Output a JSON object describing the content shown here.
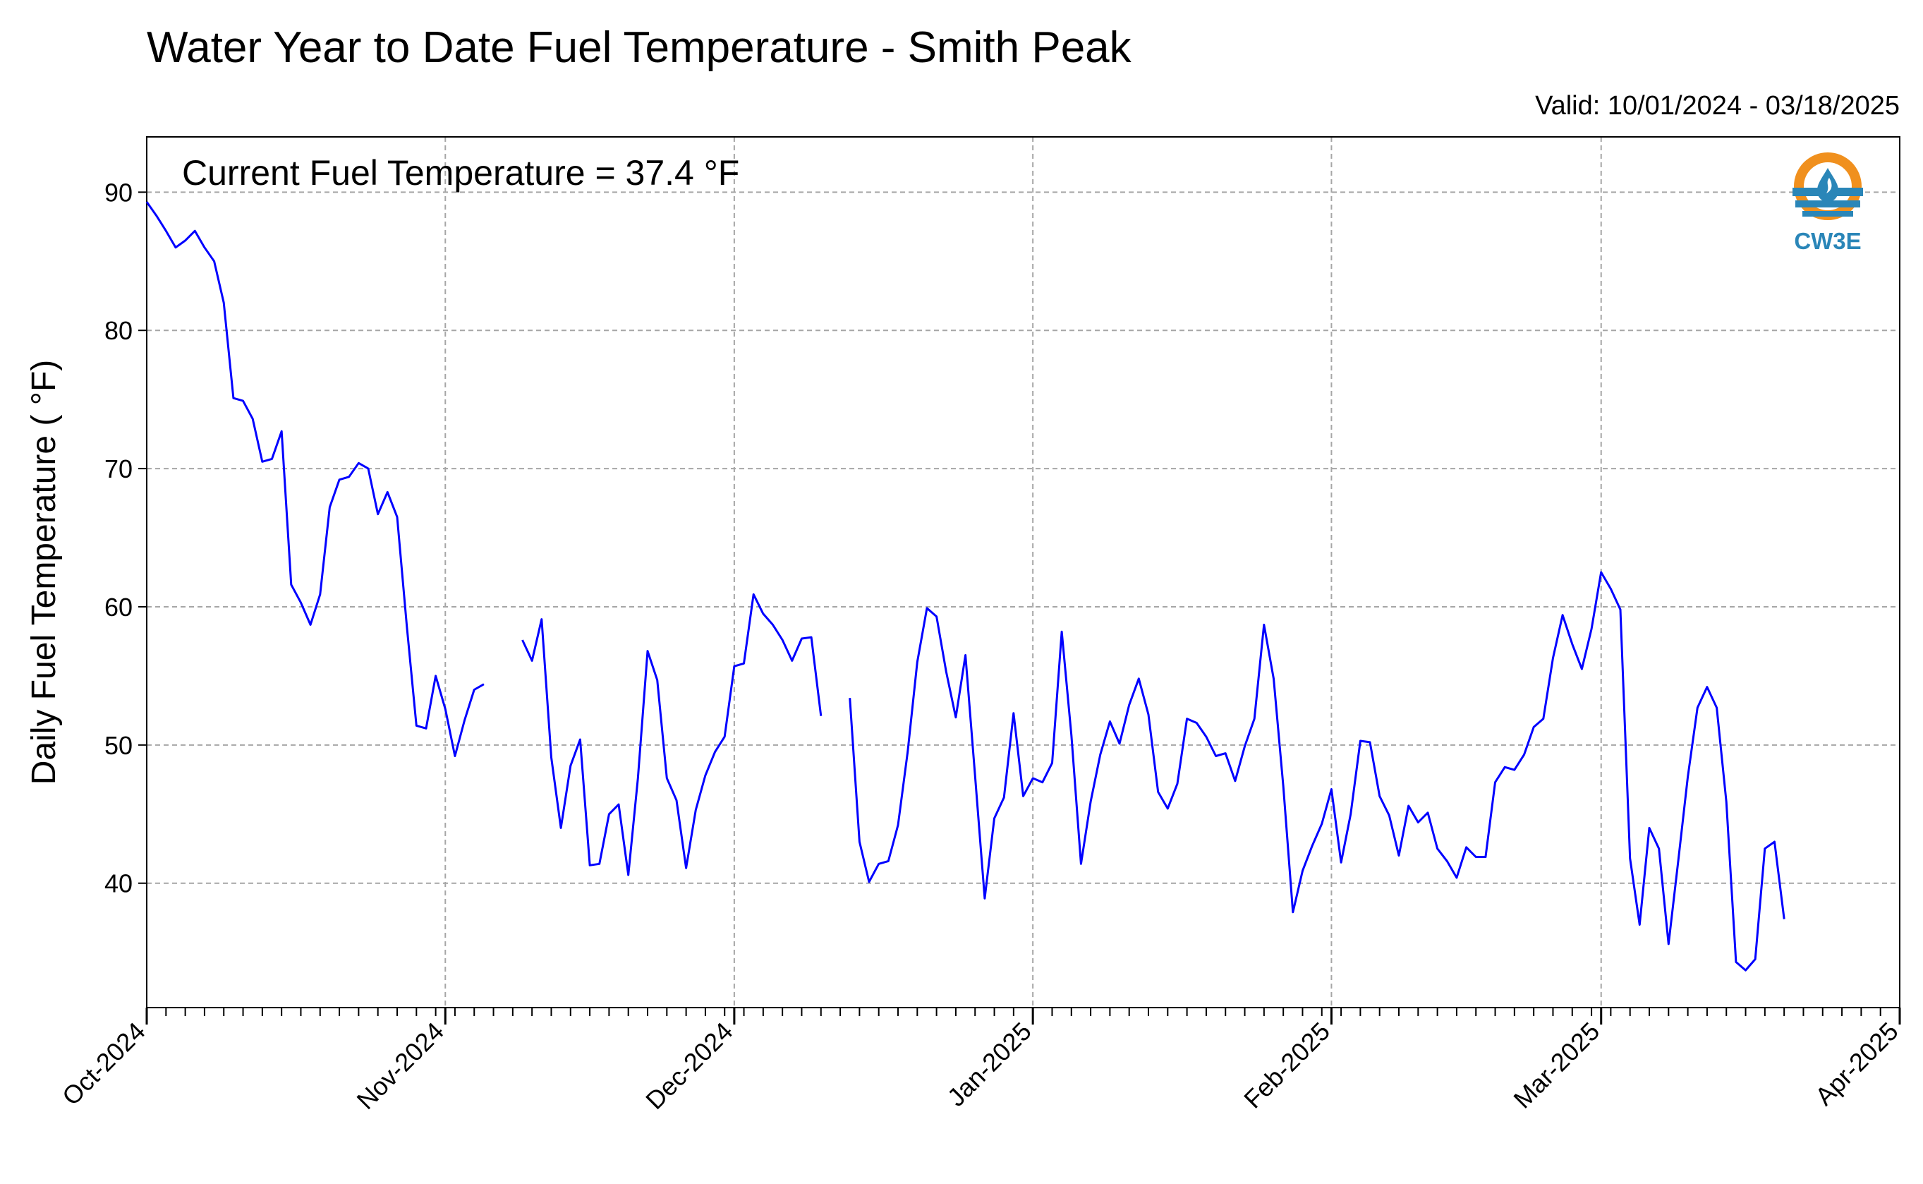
{
  "chart_data": {
    "type": "line",
    "title": "Water Year to Date Fuel Temperature - Smith Peak",
    "valid": "Valid: 10/01/2024 - 03/18/2025",
    "xlabel": "",
    "ylabel": "Daily Fuel Temperature ($^\\circ$F)",
    "ylabel_display": "Daily Fuel Temperature ( °F)",
    "annotation": "Current Fuel Temperature = 37.4  °F",
    "xlim": [
      "2024-10-01",
      "2025-04-01"
    ],
    "ylim": [
      31,
      94
    ],
    "grid": true,
    "x_ticks": [
      "Oct-2024",
      "Nov-2024",
      "Dec-2024",
      "Jan-2025",
      "Feb-2025",
      "Mar-2025",
      "Apr-2025"
    ],
    "y_ticks": [
      40,
      50,
      60,
      70,
      80,
      90
    ],
    "line_color": "#0000ff",
    "series": [
      {
        "start_date": "2024-10-01",
        "values": [
          89.3,
          88.3,
          87.2,
          86.0,
          86.5,
          87.2,
          86.0,
          85.0,
          82.0,
          75.1,
          74.9,
          73.6,
          70.5,
          70.7,
          72.7,
          61.6,
          60.3,
          58.7,
          60.9,
          67.2,
          69.2,
          69.4,
          70.4,
          70.0,
          66.7,
          68.3,
          66.5,
          58.6,
          51.4,
          51.2,
          55.0,
          52.6,
          49.2,
          51.8,
          54.0,
          54.4,
          null,
          null,
          null,
          57.6,
          56.1,
          59.1,
          49.1,
          44.0,
          48.5,
          50.4,
          41.3,
          41.4,
          45.0,
          45.7,
          40.6,
          47.6,
          56.8,
          54.7,
          47.6,
          46.0,
          41.1,
          45.3,
          47.8,
          49.5,
          50.6,
          55.7,
          55.9,
          60.9,
          59.5,
          58.7,
          57.6,
          56.1,
          57.7,
          57.8,
          52.1,
          null,
          null,
          53.4,
          43.0,
          40.1,
          41.4,
          41.6,
          44.2,
          49.5,
          56.0,
          59.9,
          59.3,
          55.3,
          52.0,
          56.5,
          47.8,
          38.9,
          44.7,
          46.2,
          52.3,
          46.3,
          47.6,
          47.3,
          48.7,
          58.2,
          50.7,
          41.4,
          45.9,
          49.3,
          51.7,
          50.1,
          52.9,
          54.8,
          52.2,
          46.6,
          45.4,
          47.2,
          51.9,
          51.6,
          50.6,
          49.2,
          49.4,
          47.4,
          49.9,
          51.9,
          58.7,
          54.8,
          47.0,
          37.9,
          40.9,
          42.7,
          44.3,
          46.8,
          41.5,
          45.0,
          50.3,
          50.2,
          46.3,
          44.9,
          42.0,
          45.6,
          44.4,
          45.1,
          42.5,
          41.6,
          40.4,
          42.6,
          41.9,
          41.9,
          47.3,
          48.4,
          48.2,
          49.3,
          51.3,
          51.9,
          56.3,
          59.4,
          57.3,
          55.5,
          58.4,
          62.5,
          61.3,
          59.8,
          41.8,
          37.0,
          44.0,
          42.5,
          35.6,
          41.6,
          47.7,
          52.7,
          54.2,
          52.7,
          45.9,
          34.3,
          33.7,
          34.5,
          42.5,
          43.0,
          37.4
        ]
      }
    ]
  },
  "logo": {
    "text": "CW3E",
    "orange": "#f0901e",
    "blue": "#2a86b8"
  }
}
